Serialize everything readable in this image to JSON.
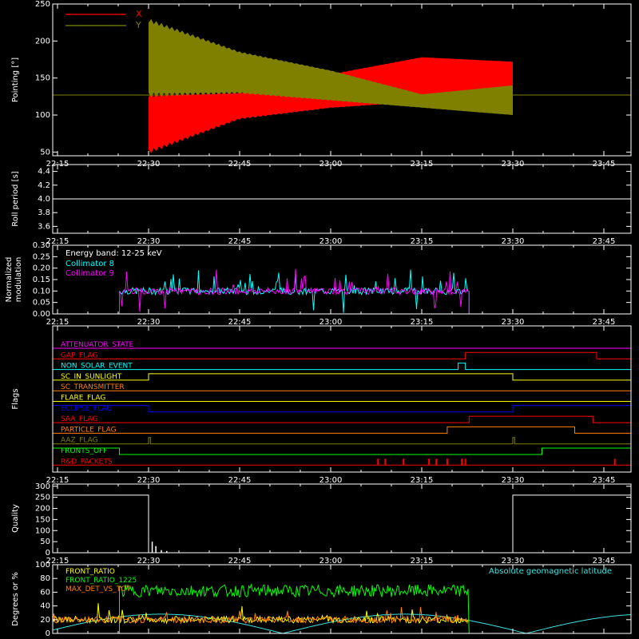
{
  "chart_data": [
    {
      "type": "area",
      "panel": "pointing",
      "ylabel": "Pointing [°]",
      "ylim": [
        45,
        250
      ],
      "yticks": [
        50,
        100,
        150,
        200,
        250
      ],
      "xticks": [
        "22:15",
        "22:30",
        "22:45",
        "23:00",
        "23:15",
        "23:30",
        "23:45"
      ],
      "legend": [
        {
          "label": "X",
          "color": "#ff0000"
        },
        {
          "label": "Y",
          "color": "#808000"
        }
      ],
      "baseline": 127,
      "series": [
        {
          "name": "X",
          "color": "#ff0000",
          "time_hours": [
            22.5,
            22.75,
            23.0,
            23.25,
            23.5
          ],
          "upper": [
            127,
            130,
            155,
            178,
            172
          ],
          "lower": [
            50,
            95,
            110,
            118,
            120
          ]
        },
        {
          "name": "Y",
          "color": "#808000",
          "time_hours": [
            22.5,
            22.75,
            23.0,
            23.25,
            23.5
          ],
          "upper": [
            228,
            185,
            160,
            128,
            140
          ],
          "lower": [
            127,
            130,
            120,
            110,
            100
          ]
        }
      ]
    },
    {
      "type": "line",
      "panel": "roll",
      "ylabel": "Roll period [s]",
      "ylim": [
        3.5,
        4.5
      ],
      "yticks": [
        "3.6",
        "3.8",
        "4.0",
        "4.2",
        "4.4"
      ],
      "xticks": [
        "22:15",
        "22:30",
        "22:45",
        "23:00",
        "23:15",
        "23:30",
        "23:45"
      ],
      "series": [
        {
          "time_hours": [
            22.2,
            23.99
          ],
          "values": [
            4.0,
            4.0
          ],
          "color": "#ffffff"
        }
      ]
    },
    {
      "type": "line",
      "panel": "modulation",
      "ylabel": "Normalized modulation",
      "ylim": [
        0,
        0.3
      ],
      "yticks": [
        "0.00",
        "0.05",
        "0.10",
        "0.15",
        "0.20",
        "0.25",
        "0.30"
      ],
      "xticks": [
        "22:15",
        "22:30",
        "22:45",
        "23:00",
        "23:15",
        "23:30",
        "23:45"
      ],
      "legend_title": "Energy band: 12-25 keV",
      "series": [
        {
          "name": "Collimator 8",
          "color": "#00ffff",
          "start_hours": 22.42,
          "end_hours": 23.38,
          "level": 0.1
        },
        {
          "name": "Collimator 9",
          "color": "#ff00ff",
          "start_hours": 22.42,
          "end_hours": 23.38,
          "level": 0.1
        }
      ]
    },
    {
      "type": "line",
      "panel": "flags",
      "ylabel": "Flags",
      "flags": [
        {
          "label": "ATTENUATOR_STATE",
          "color": "#ff00ff",
          "segments": [
            [
              22.2,
              0
            ]
          ]
        },
        {
          "label": "GAP_FLAG",
          "color": "#ff0000",
          "segments": [
            [
              22.2,
              0
            ],
            [
              23.37,
              1
            ],
            [
              23.73,
              0
            ]
          ]
        },
        {
          "label": "NON_SOLAR_EVENT",
          "color": "#00ffff",
          "segments": [
            [
              22.2,
              0
            ],
            [
              23.35,
              1
            ],
            [
              23.37,
              0
            ]
          ]
        },
        {
          "label": "SC_IN_SUNLIGHT",
          "color": "#ffff00",
          "segments": [
            [
              22.2,
              0
            ],
            [
              22.5,
              1
            ],
            [
              23.5,
              0
            ]
          ]
        },
        {
          "label": "SC_TRANSMITTER",
          "color": "#ff8000",
          "segments": [
            [
              22.2,
              0
            ]
          ]
        },
        {
          "label": "FLARE_FLAG",
          "color": "#ffff00",
          "segments": [
            [
              22.2,
              0
            ]
          ]
        },
        {
          "label": "ECLIPSE_FLAG",
          "color": "#0000ff",
          "segments": [
            [
              22.2,
              1
            ],
            [
              22.5,
              0
            ],
            [
              23.5,
              1
            ]
          ]
        },
        {
          "label": "SAA_FLAG",
          "color": "#ff0000",
          "segments": [
            [
              22.2,
              0
            ],
            [
              23.38,
              1
            ],
            [
              23.72,
              0
            ]
          ]
        },
        {
          "label": "PARTICLE_FLAG",
          "color": "#ff8000",
          "segments": [
            [
              22.2,
              0
            ],
            [
              23.32,
              1
            ],
            [
              23.67,
              0
            ]
          ]
        },
        {
          "label": "AAZ_FLAG",
          "color": "#808000",
          "segments": [
            [
              22.2,
              0
            ],
            [
              22.5,
              1
            ],
            [
              22.505,
              0
            ],
            [
              23.5,
              1
            ],
            [
              23.505,
              0
            ]
          ]
        },
        {
          "label": "FRONTS_OFF",
          "color": "#00ff00",
          "segments": [
            [
              22.2,
              1
            ],
            [
              22.42,
              0
            ],
            [
              23.58,
              1
            ]
          ]
        },
        {
          "label": "R&D_PACKETS",
          "color": "#ff0000",
          "segments": [
            [
              22.2,
              0
            ]
          ],
          "spikes": [
            23.13,
            23.15,
            23.2,
            23.27,
            23.29,
            23.32,
            23.36,
            23.37,
            23.78
          ]
        }
      ]
    },
    {
      "type": "line",
      "panel": "quality",
      "ylabel": "Quality",
      "ylim": [
        0,
        310
      ],
      "yticks": [
        0,
        50,
        100,
        150,
        200,
        250,
        300
      ],
      "xticks": [
        "22:15",
        "22:30",
        "22:45",
        "23:00",
        "23:15",
        "23:30",
        "23:45"
      ],
      "series": [
        {
          "color": "#ffffff",
          "segments": [
            {
              "from": 22.2,
              "to": 22.5,
              "value": 260
            },
            {
              "from": 22.5,
              "to": 23.5,
              "value": 0
            },
            {
              "from": 23.5,
              "to": 23.99,
              "value": 260
            }
          ]
        }
      ]
    },
    {
      "type": "line",
      "panel": "ratio",
      "ylabel": "Degrees or %",
      "ylim": [
        0,
        100
      ],
      "yticks": [
        0,
        20,
        40,
        60,
        80,
        100
      ],
      "annotation": "Absolute geomagnetic latitude",
      "series": [
        {
          "name": "FRONT_RATIO",
          "color": "#ffff00",
          "level": 20
        },
        {
          "name": "FRONT_RATIO_1225",
          "color": "#00ff00",
          "start_hours": 22.42,
          "end_hours": 23.38,
          "level": 62
        },
        {
          "name": "MAX_DET_VS_TOT",
          "color": "#ff8000",
          "level": 20
        },
        {
          "name": "Absolute geomagnetic latitude",
          "color": "#40e0e0"
        }
      ]
    }
  ],
  "colors": {
    "axis": "#ffffff",
    "x": "#ff0000",
    "y": "#808000",
    "cyan": "#00ffff",
    "magenta": "#ff00ff",
    "green": "#00ff00",
    "orange": "#ff8000"
  }
}
